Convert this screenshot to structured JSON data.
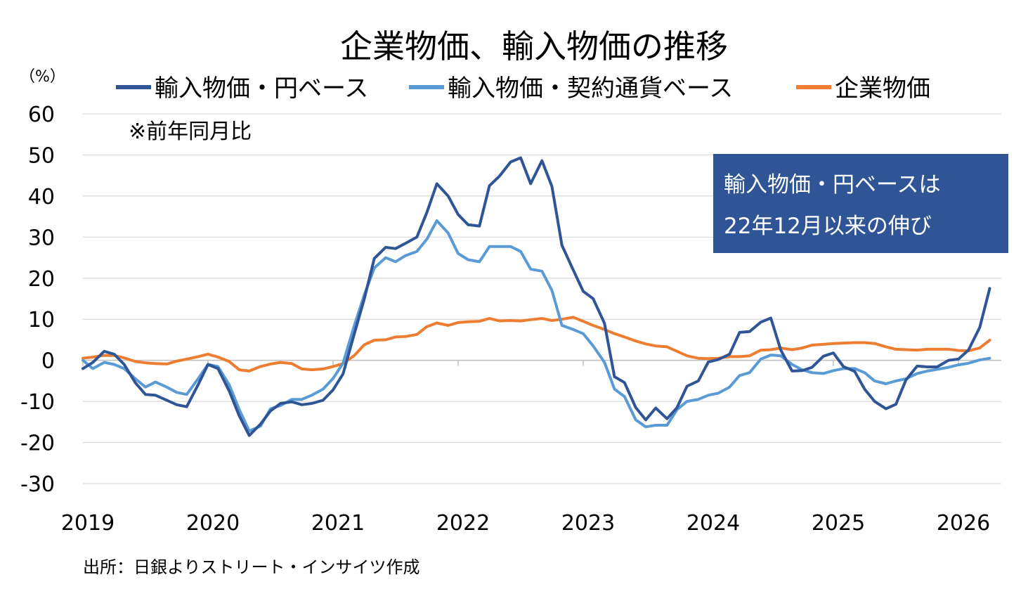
{
  "chart_data": {
    "type": "line",
    "title": "企業物価、輸入物価の推移",
    "ylabel_unit": "（%）",
    "subtitle_note": "※前年同月比",
    "source": "出所：日銀よりストリート・インサイツ作成",
    "annotation": {
      "lines": [
        "輸入物価・円ベースは",
        "22年12月以来の伸び"
      ],
      "box_color": "#2F5597",
      "text_color": "#ffffff"
    },
    "ylim": [
      -30,
      60
    ],
    "yticks": [
      "60",
      "50",
      "40",
      "30",
      "20",
      "10",
      "0",
      "-10",
      "-20",
      "-30"
    ],
    "ytick_values": [
      60,
      50,
      40,
      30,
      20,
      10,
      0,
      -10,
      -20,
      -30
    ],
    "xlim": [
      2019.0,
      2026.3
    ],
    "xticks": [
      "2019",
      "2020",
      "2021",
      "2022",
      "2023",
      "2024",
      "2025",
      "2026"
    ],
    "xtick_values": [
      2019,
      2020,
      2021,
      2022,
      2023,
      2024,
      2025,
      2026
    ],
    "grid": true,
    "legend_position": "top",
    "series": [
      {
        "name": "輸入物価・円ベース",
        "color": "#2F5597",
        "x": [
          2019.0,
          2019.08,
          2019.17,
          2019.25,
          2019.33,
          2019.42,
          2019.5,
          2019.58,
          2019.67,
          2019.75,
          2019.83,
          2019.92,
          2020.0,
          2020.08,
          2020.17,
          2020.25,
          2020.33,
          2020.42,
          2020.5,
          2020.58,
          2020.67,
          2020.75,
          2020.83,
          2020.92,
          2021.0,
          2021.08,
          2021.17,
          2021.25,
          2021.33,
          2021.42,
          2021.5,
          2021.58,
          2021.67,
          2021.75,
          2021.83,
          2021.92,
          2022.0,
          2022.08,
          2022.17,
          2022.25,
          2022.33,
          2022.42,
          2022.5,
          2022.58,
          2022.67,
          2022.75,
          2022.83,
          2022.92,
          2023.0,
          2023.08,
          2023.17,
          2023.25,
          2023.33,
          2023.42,
          2023.5,
          2023.58,
          2023.67,
          2023.75,
          2023.83,
          2023.92,
          2024.0,
          2024.08,
          2024.17,
          2024.25,
          2024.33,
          2024.42,
          2024.5,
          2024.58,
          2024.67,
          2024.75,
          2024.83,
          2024.92,
          2025.0,
          2025.08,
          2025.17,
          2025.25,
          2025.33,
          2025.42,
          2025.5,
          2025.58,
          2025.67,
          2025.75,
          2025.83,
          2025.92,
          2026.0,
          2026.08,
          2026.17,
          2026.25
        ],
        "values": [
          -2,
          -0.5,
          2.2,
          1.5,
          -1,
          -5.5,
          -8.3,
          -8.5,
          -9.7,
          -10.8,
          -11.3,
          -6,
          -1,
          -2,
          -7.5,
          -13.5,
          -18.3,
          -15.5,
          -12.3,
          -10.5,
          -10.1,
          -10.8,
          -10.5,
          -9.7,
          -7.2,
          -3.3,
          6.5,
          15,
          24.8,
          27.5,
          27.2,
          28.5,
          30,
          36,
          43,
          40,
          35.5,
          33,
          32.7,
          42.5,
          44.8,
          48.3,
          49.3,
          43,
          48.6,
          42.3,
          28,
          22,
          16.8,
          15,
          9,
          -4,
          -5.4,
          -11.5,
          -14.5,
          -11.6,
          -14.2,
          -11.5,
          -6.3,
          -5,
          -0.4,
          0.2,
          1.5,
          6.8,
          7,
          9.3,
          10.3,
          2.5,
          -2.6,
          -2.5,
          -1.7,
          1,
          1.8,
          -1.5,
          -2.7,
          -7,
          -10,
          -11.8,
          -10.7,
          -4.8,
          -1.4,
          -1.6,
          -1.6,
          0,
          0.3,
          2.5,
          8,
          17.5
        ]
      },
      {
        "name": "輸入物価・契約通貨ベース",
        "color": "#5B9BD5",
        "x": [
          2019.0,
          2019.08,
          2019.17,
          2019.25,
          2019.33,
          2019.42,
          2019.5,
          2019.58,
          2019.67,
          2019.75,
          2019.83,
          2019.92,
          2020.0,
          2020.08,
          2020.17,
          2020.25,
          2020.33,
          2020.42,
          2020.5,
          2020.58,
          2020.67,
          2020.75,
          2020.83,
          2020.92,
          2021.0,
          2021.08,
          2021.17,
          2021.25,
          2021.33,
          2021.42,
          2021.5,
          2021.58,
          2021.67,
          2021.75,
          2021.83,
          2021.92,
          2022.0,
          2022.08,
          2022.17,
          2022.25,
          2022.33,
          2022.42,
          2022.5,
          2022.58,
          2022.67,
          2022.75,
          2022.83,
          2022.92,
          2023.0,
          2023.08,
          2023.17,
          2023.25,
          2023.33,
          2023.42,
          2023.5,
          2023.58,
          2023.67,
          2023.75,
          2023.83,
          2023.92,
          2024.0,
          2024.08,
          2024.17,
          2024.25,
          2024.33,
          2024.42,
          2024.5,
          2024.58,
          2024.67,
          2024.75,
          2024.83,
          2024.92,
          2025.0,
          2025.08,
          2025.17,
          2025.25,
          2025.33,
          2025.42,
          2025.5,
          2025.58,
          2025.67,
          2025.75,
          2025.83,
          2025.92,
          2026.0,
          2026.08,
          2026.17,
          2026.25
        ],
        "values": [
          0,
          -2,
          -0.5,
          -1,
          -2,
          -4.5,
          -6.5,
          -5.3,
          -6.5,
          -7.8,
          -8.3,
          -4.5,
          -1,
          -1.5,
          -6,
          -12,
          -17.2,
          -16,
          -11.8,
          -11,
          -9.5,
          -9.5,
          -8.5,
          -7,
          -4.4,
          -0.7,
          8.5,
          16,
          22.5,
          25,
          24,
          25.5,
          26.5,
          29.5,
          34,
          31,
          26,
          24.5,
          24,
          27.7,
          27.7,
          27.7,
          26.5,
          22.2,
          21.7,
          17,
          8.5,
          7.5,
          6.5,
          3.5,
          -0.5,
          -7,
          -8.8,
          -14.5,
          -16.2,
          -15.8,
          -15.8,
          -12,
          -10,
          -9.5,
          -8.5,
          -8,
          -6.5,
          -3.7,
          -3,
          0.3,
          1.3,
          1.1,
          -1,
          -2.3,
          -3,
          -3.2,
          -2.5,
          -2,
          -2,
          -3,
          -5,
          -5.7,
          -5,
          -4.5,
          -3.2,
          -2.6,
          -2.2,
          -1.7,
          -1.1,
          -0.7,
          0.1,
          0.5
        ]
      },
      {
        "name": "企業物価",
        "color": "#ED7D31",
        "x": [
          2019.0,
          2019.08,
          2019.17,
          2019.25,
          2019.33,
          2019.42,
          2019.5,
          2019.58,
          2019.67,
          2019.75,
          2019.83,
          2019.92,
          2020.0,
          2020.08,
          2020.17,
          2020.25,
          2020.33,
          2020.42,
          2020.5,
          2020.58,
          2020.67,
          2020.75,
          2020.83,
          2020.92,
          2021.0,
          2021.08,
          2021.17,
          2021.25,
          2021.33,
          2021.42,
          2021.5,
          2021.58,
          2021.67,
          2021.75,
          2021.83,
          2021.92,
          2022.0,
          2022.08,
          2022.17,
          2022.25,
          2022.33,
          2022.42,
          2022.5,
          2022.58,
          2022.67,
          2022.75,
          2022.83,
          2022.92,
          2023.0,
          2023.08,
          2023.17,
          2023.25,
          2023.33,
          2023.42,
          2023.5,
          2023.58,
          2023.67,
          2023.75,
          2023.83,
          2023.92,
          2024.0,
          2024.08,
          2024.17,
          2024.25,
          2024.33,
          2024.42,
          2024.5,
          2024.58,
          2024.67,
          2024.75,
          2024.83,
          2024.92,
          2025.0,
          2025.08,
          2025.17,
          2025.25,
          2025.33,
          2025.42,
          2025.5,
          2025.58,
          2025.67,
          2025.75,
          2025.83,
          2025.92,
          2026.0,
          2026.08,
          2026.17,
          2026.25
        ],
        "values": [
          0.5,
          0.8,
          1.2,
          1.2,
          0.6,
          -0.3,
          -0.6,
          -0.8,
          -0.9,
          -0.2,
          0.3,
          0.9,
          1.5,
          0.8,
          -0.3,
          -2.3,
          -2.6,
          -1.5,
          -0.9,
          -0.5,
          -0.8,
          -2.1,
          -2.3,
          -2.1,
          -1.5,
          -0.8,
          1.2,
          3.8,
          4.9,
          5,
          5.7,
          5.8,
          6.3,
          8.2,
          9.1,
          8.5,
          9.2,
          9.4,
          9.5,
          10.2,
          9.6,
          9.7,
          9.6,
          9.9,
          10.2,
          9.7,
          10,
          10.5,
          9.5,
          8.5,
          7.5,
          6.5,
          5.7,
          4.7,
          4,
          3.5,
          3.3,
          2.2,
          1.1,
          0.5,
          0.4,
          0.5,
          0.9,
          0.9,
          1.1,
          2.5,
          2.6,
          3,
          2.6,
          3,
          3.7,
          3.9,
          4.1,
          4.2,
          4.3,
          4.3,
          4.1,
          3.3,
          2.7,
          2.6,
          2.5,
          2.7,
          2.7,
          2.7,
          2.4,
          2.3,
          3,
          4.9
        ]
      }
    ]
  }
}
